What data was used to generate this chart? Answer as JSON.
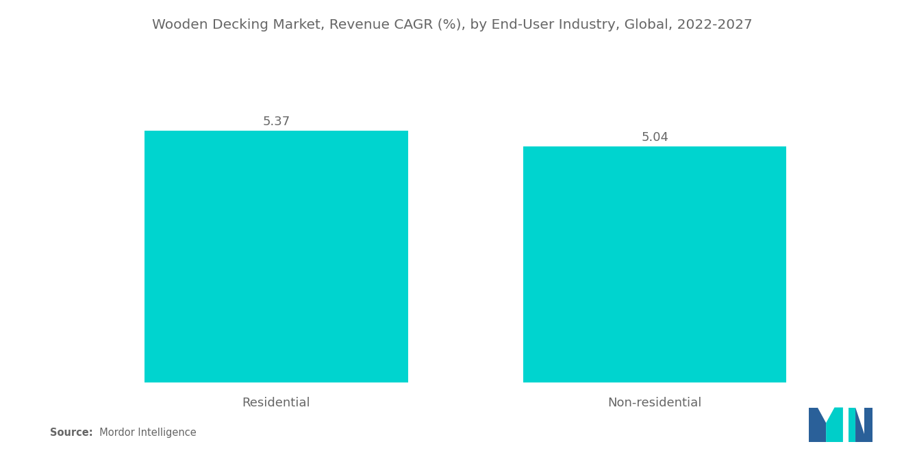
{
  "title": "Wooden Decking Market, Revenue CAGR (%), by End-User Industry, Global, 2022-2027",
  "categories": [
    "Residential",
    "Non-residential"
  ],
  "values": [
    5.37,
    5.04
  ],
  "bar_color": "#00D4CF",
  "bar_width": 0.32,
  "value_labels": [
    "5.37",
    "5.04"
  ],
  "ylim": [
    0,
    7
  ],
  "x_positions": [
    0.27,
    0.73
  ],
  "xlim": [
    0.0,
    1.0
  ],
  "title_fontsize": 14.5,
  "label_fontsize": 13,
  "value_fontsize": 13,
  "source_bold": "Source:",
  "source_rest": "  Mordor Intelligence",
  "background_color": "#ffffff",
  "text_color": "#666666",
  "logo_blue": "#2A6099",
  "logo_teal": "#00CEC9"
}
